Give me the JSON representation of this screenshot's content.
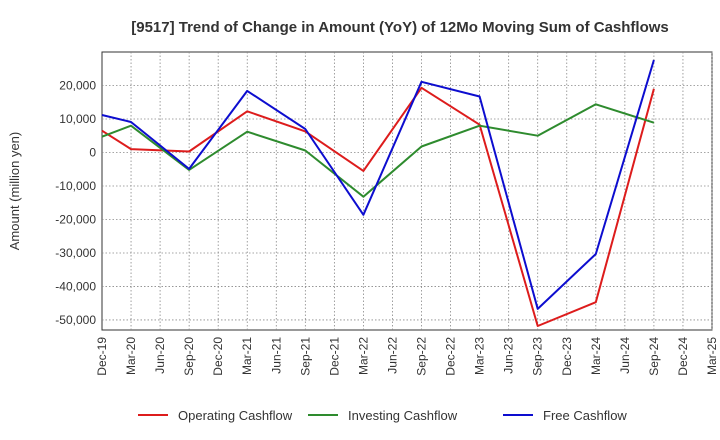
{
  "chart_data": {
    "type": "line",
    "title": "[9517]  Trend of Change in Amount (YoY) of 12Mo Moving Sum of Cashflows",
    "xlabel": "",
    "ylabel": "Amount (million yen)",
    "ylim": [
      -53000,
      30000
    ],
    "yticks": [
      20000,
      10000,
      0,
      -10000,
      -20000,
      -30000,
      -40000,
      -50000
    ],
    "ytick_labels": [
      "20,000",
      "10,000",
      "0",
      "-10,000",
      "-20,000",
      "-30,000",
      "-40,000",
      "-50,000"
    ],
    "categories": [
      "Dec-19",
      "Mar-20",
      "Jun-20",
      "Sep-20",
      "Dec-20",
      "Mar-21",
      "Jun-21",
      "Sep-21",
      "Dec-21",
      "Mar-22",
      "Jun-22",
      "Sep-22",
      "Dec-22",
      "Mar-23",
      "Jun-23",
      "Sep-23",
      "Dec-23",
      "Mar-24",
      "Jun-24",
      "Sep-24",
      "Dec-24",
      "Mar-25"
    ],
    "grid": true,
    "legend_position": "bottom",
    "series": [
      {
        "name": "Operating Cashflow",
        "color": "#dd1c1c",
        "points": [
          [
            0,
            6500
          ],
          [
            1,
            1000
          ],
          [
            3,
            300
          ],
          [
            5,
            12300
          ],
          [
            7,
            6300
          ],
          [
            9,
            -5500
          ],
          [
            11,
            19300
          ],
          [
            13,
            8300
          ],
          [
            15,
            -51800
          ],
          [
            17,
            -44700
          ],
          [
            19,
            19000
          ]
        ]
      },
      {
        "name": "Investing Cashflow",
        "color": "#2e8b2e",
        "points": [
          [
            0,
            4700
          ],
          [
            1,
            8000
          ],
          [
            3,
            -5200
          ],
          [
            5,
            6200
          ],
          [
            7,
            600
          ],
          [
            9,
            -13200
          ],
          [
            11,
            1800
          ],
          [
            13,
            8000
          ],
          [
            15,
            5000
          ],
          [
            17,
            14400
          ],
          [
            19,
            8900
          ]
        ]
      },
      {
        "name": "Free Cashflow",
        "color": "#0d0dcf",
        "points": [
          [
            0,
            11200
          ],
          [
            1,
            9100
          ],
          [
            3,
            -4900
          ],
          [
            5,
            18400
          ],
          [
            7,
            7000
          ],
          [
            9,
            -18600
          ],
          [
            11,
            21100
          ],
          [
            13,
            16700
          ],
          [
            15,
            -46700
          ],
          [
            17,
            -30300
          ],
          [
            19,
            27600
          ]
        ]
      }
    ]
  }
}
